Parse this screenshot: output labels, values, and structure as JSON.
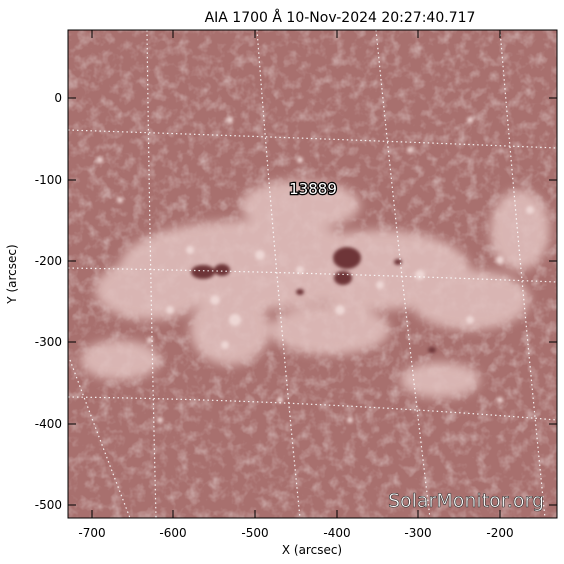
{
  "title": "AIA 1700 Å 10-Nov-2024 20:27:40.717",
  "axes": {
    "x_label": "X (arcsec)",
    "y_label": "Y (arcsec)",
    "x_ticks": [
      "-700",
      "-600",
      "-500",
      "-400",
      "-300",
      "-200"
    ],
    "y_ticks": [
      "0",
      "-100",
      "-200",
      "-300",
      "-400",
      "-500"
    ]
  },
  "region_label": "13889",
  "watermark": "SolarMonitor.org",
  "colors": {
    "image_base": "#a8706e",
    "bright_plage": "#e6c8c6",
    "dark_spot": "#6e3638",
    "grid": "#ffffff"
  }
}
